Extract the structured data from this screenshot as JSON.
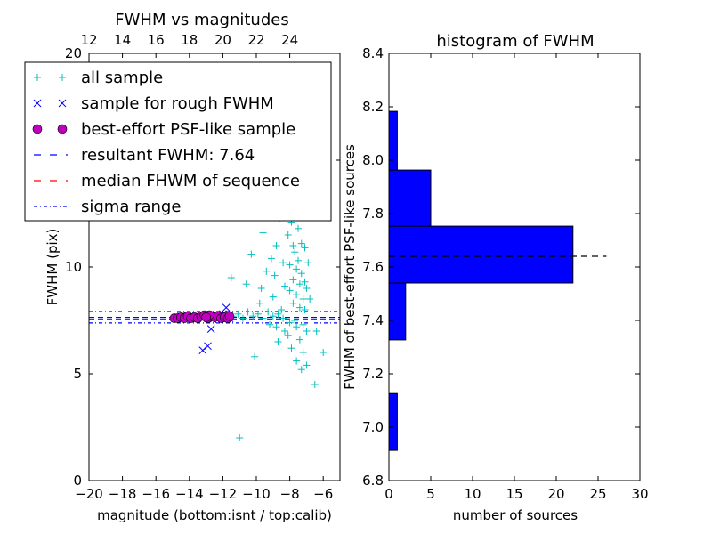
{
  "chart_data": [
    {
      "type": "scatter",
      "title": "FWHM vs magnitudes",
      "xlabel": "magnitude (bottom:isnt / top:calib)",
      "ylabel": "FWHM (pix)",
      "xlim": [
        -20,
        -5
      ],
      "ylim": [
        0,
        20
      ],
      "xticks": [
        -20,
        -18,
        -16,
        -14,
        -12,
        -10,
        -8,
        -6
      ],
      "xtick_labels": [
        "−20",
        "−18",
        "−16",
        "−14",
        "−12",
        "−10",
        "−8",
        "−6"
      ],
      "yticks": [
        0,
        5,
        10,
        15,
        20
      ],
      "ytick_labels": [
        "0",
        "5",
        "10",
        "15",
        "20"
      ],
      "top_axis": {
        "ticks": [
          12,
          14,
          16,
          18,
          20,
          22,
          24
        ],
        "tick_labels": [
          "12",
          "14",
          "16",
          "18",
          "20",
          "22",
          "24"
        ],
        "offset": 32
      },
      "legend": {
        "position": "top-left",
        "entries": [
          {
            "label": "all sample",
            "marker": "plus",
            "color": "#00bfbf"
          },
          {
            "label": "sample for rough FWHM",
            "marker": "x",
            "color": "#0000ff"
          },
          {
            "label": "best-effort PSF-like sample",
            "marker": "circle",
            "color": "#bf00bf"
          },
          {
            "label": "resultant FWHM: 7.64",
            "marker": "dashed",
            "color": "#0000ff"
          },
          {
            "label": "median FHWM of sequence",
            "marker": "dashed",
            "color": "#ff0000"
          },
          {
            "label": "sigma range",
            "marker": "dashdot",
            "color": "#0000ff"
          }
        ]
      },
      "series": [
        {
          "name": "all sample",
          "color": "#00bfbf",
          "points": [
            [
              -14.6,
              7.6
            ],
            [
              -14.2,
              7.7
            ],
            [
              -13.9,
              7.6
            ],
            [
              -13.5,
              7.7
            ],
            [
              -13.1,
              7.65
            ],
            [
              -12.8,
              7.7
            ],
            [
              -12.4,
              7.6
            ],
            [
              -12.0,
              7.7
            ],
            [
              -11.7,
              7.6
            ],
            [
              -11.4,
              7.7
            ],
            [
              -11.1,
              7.8
            ],
            [
              -10.8,
              7.6
            ],
            [
              -10.5,
              7.9
            ],
            [
              -10.2,
              7.7
            ],
            [
              -9.9,
              7.8
            ],
            [
              -9.6,
              7.6
            ],
            [
              -9.3,
              7.9
            ],
            [
              -9.0,
              7.7
            ],
            [
              -8.7,
              7.8
            ],
            [
              -8.4,
              7.6
            ],
            [
              -11.5,
              9.5
            ],
            [
              -10.6,
              9.2
            ],
            [
              -10.1,
              5.8
            ],
            [
              -11.0,
              2.0
            ],
            [
              -9.8,
              8.3
            ],
            [
              -9.4,
              9.8
            ],
            [
              -9.1,
              10.4
            ],
            [
              -8.9,
              9.6
            ],
            [
              -8.8,
              11.0
            ],
            [
              -8.6,
              12.3
            ],
            [
              -8.5,
              13.1
            ],
            [
              -8.4,
              10.2
            ],
            [
              -8.3,
              9.1
            ],
            [
              -8.2,
              14.2
            ],
            [
              -8.2,
              12.9
            ],
            [
              -8.1,
              11.5
            ],
            [
              -8.0,
              10.1
            ],
            [
              -8.0,
              8.9
            ],
            [
              -7.9,
              13.7
            ],
            [
              -7.9,
              12.1
            ],
            [
              -7.8,
              11.0
            ],
            [
              -7.8,
              9.4
            ],
            [
              -7.8,
              8.3
            ],
            [
              -7.7,
              14.0
            ],
            [
              -7.7,
              12.6
            ],
            [
              -7.7,
              10.7
            ],
            [
              -7.6,
              9.9
            ],
            [
              -7.6,
              8.7
            ],
            [
              -7.6,
              7.2
            ],
            [
              -7.5,
              13.2
            ],
            [
              -7.5,
              11.8
            ],
            [
              -7.5,
              10.3
            ],
            [
              -7.4,
              9.2
            ],
            [
              -7.4,
              8.1
            ],
            [
              -7.4,
              6.6
            ],
            [
              -7.3,
              12.4
            ],
            [
              -7.3,
              11.1
            ],
            [
              -7.3,
              9.7
            ],
            [
              -7.2,
              8.5
            ],
            [
              -7.2,
              7.3
            ],
            [
              -7.2,
              6.0
            ],
            [
              -7.1,
              10.9
            ],
            [
              -7.1,
              9.3
            ],
            [
              -7.1,
              8.0
            ],
            [
              -7.0,
              7.0
            ],
            [
              -7.0,
              5.4
            ],
            [
              -7.0,
              9.0
            ],
            [
              -8.6,
              14.6
            ],
            [
              -8.9,
              13.9
            ],
            [
              -9.3,
              12.4
            ],
            [
              -9.6,
              11.6
            ],
            [
              -10.3,
              10.6
            ],
            [
              -8.1,
              6.8
            ],
            [
              -7.9,
              6.2
            ],
            [
              -8.3,
              7.0
            ],
            [
              -8.7,
              6.5
            ],
            [
              -8.8,
              7.2
            ],
            [
              -9.2,
              7.3
            ],
            [
              -7.6,
              5.6
            ],
            [
              -7.3,
              5.2
            ],
            [
              -7.5,
              14.8
            ],
            [
              -7.8,
              14.9
            ],
            [
              -8.4,
              15.0
            ],
            [
              -6.4,
              7.0
            ],
            [
              -6.0,
              6.0
            ],
            [
              -6.5,
              4.5
            ],
            [
              -6.8,
              8.5
            ],
            [
              -6.9,
              10.2
            ],
            [
              -7.1,
              12.8
            ],
            [
              -7.4,
              13.6
            ],
            [
              -7.7,
              7.5
            ],
            [
              -8.0,
              7.4
            ],
            [
              -8.5,
              8.0
            ],
            [
              -9.0,
              8.6
            ],
            [
              -9.7,
              9.0
            ]
          ]
        },
        {
          "name": "sample for rough FWHM",
          "color": "#0000ff",
          "points": [
            [
              -14.8,
              7.6
            ],
            [
              -14.5,
              7.7
            ],
            [
              -14.1,
              7.65
            ],
            [
              -13.8,
              7.6
            ],
            [
              -13.6,
              7.7
            ],
            [
              -13.3,
              7.65
            ],
            [
              -13.1,
              7.7
            ],
            [
              -12.9,
              7.6
            ],
            [
              -12.7,
              7.7
            ],
            [
              -12.6,
              7.55
            ],
            [
              -12.4,
              7.7
            ],
            [
              -12.2,
              7.65
            ],
            [
              -12.0,
              7.8
            ],
            [
              -11.8,
              7.7
            ],
            [
              -11.6,
              7.6
            ],
            [
              -11.8,
              8.1
            ],
            [
              -12.7,
              7.1
            ],
            [
              -12.9,
              6.3
            ],
            [
              -13.2,
              6.1
            ]
          ]
        },
        {
          "name": "best-effort PSF-like sample",
          "color": "#bf00bf",
          "points": [
            [
              -14.9,
              7.6
            ],
            [
              -14.7,
              7.6
            ],
            [
              -14.5,
              7.65
            ],
            [
              -14.3,
              7.6
            ],
            [
              -14.1,
              7.7
            ],
            [
              -13.9,
              7.6
            ],
            [
              -13.7,
              7.65
            ],
            [
              -13.5,
              7.6
            ],
            [
              -13.3,
              7.7
            ],
            [
              -13.1,
              7.75
            ],
            [
              -12.9,
              7.6
            ],
            [
              -12.7,
              7.7
            ],
            [
              -12.5,
              7.65
            ],
            [
              -12.3,
              7.7
            ],
            [
              -12.1,
              7.6
            ],
            [
              -11.9,
              7.65
            ],
            [
              -11.7,
              7.6
            ],
            [
              -11.6,
              7.7
            ],
            [
              -12.8,
              7.75
            ],
            [
              -13.0,
              7.65
            ]
          ]
        }
      ],
      "hlines": [
        {
          "name": "resultant FWHM: 7.64",
          "y": 7.64,
          "color": "#0000ff",
          "style": "dashed"
        },
        {
          "name": "median FHWM of sequence",
          "y": 7.56,
          "color": "#ff0000",
          "style": "dashed"
        },
        {
          "name": "sigma range",
          "y": 7.92,
          "color": "#0000ff",
          "style": "dashdot"
        },
        {
          "name": "sigma range",
          "y": 7.38,
          "color": "#0000ff",
          "style": "dashdot"
        }
      ]
    },
    {
      "type": "bar",
      "orientation": "horizontal",
      "title": "histogram of FWHM",
      "xlabel": "number of sources",
      "ylabel": "FWHM of best-effort PSF-like sources",
      "xlim": [
        0,
        30
      ],
      "ylim": [
        6.8,
        8.4
      ],
      "xticks": [
        0,
        5,
        10,
        15,
        20,
        25,
        30
      ],
      "xtick_labels": [
        "0",
        "5",
        "10",
        "15",
        "20",
        "25",
        "30"
      ],
      "yticks": [
        6.8,
        7.0,
        7.2,
        7.4,
        7.6,
        7.8,
        8.0,
        8.2,
        8.4
      ],
      "ytick_labels": [
        "6.8",
        "7.0",
        "7.2",
        "7.4",
        "7.6",
        "7.8",
        "8.0",
        "8.2",
        "8.4"
      ],
      "bar_color": "#0000ff",
      "bins": [
        {
          "low": 6.913,
          "high": 7.126,
          "count": 1
        },
        {
          "low": 7.126,
          "high": 7.327,
          "count": 0
        },
        {
          "low": 7.327,
          "high": 7.54,
          "count": 2
        },
        {
          "low": 7.54,
          "high": 7.753,
          "count": 22
        },
        {
          "low": 7.753,
          "high": 7.963,
          "count": 5
        },
        {
          "low": 7.963,
          "high": 8.183,
          "count": 1
        }
      ],
      "reference_line": {
        "y": 7.64,
        "x_range": [
          0,
          26
        ],
        "style": "dashed",
        "color": "#000000"
      }
    }
  ]
}
